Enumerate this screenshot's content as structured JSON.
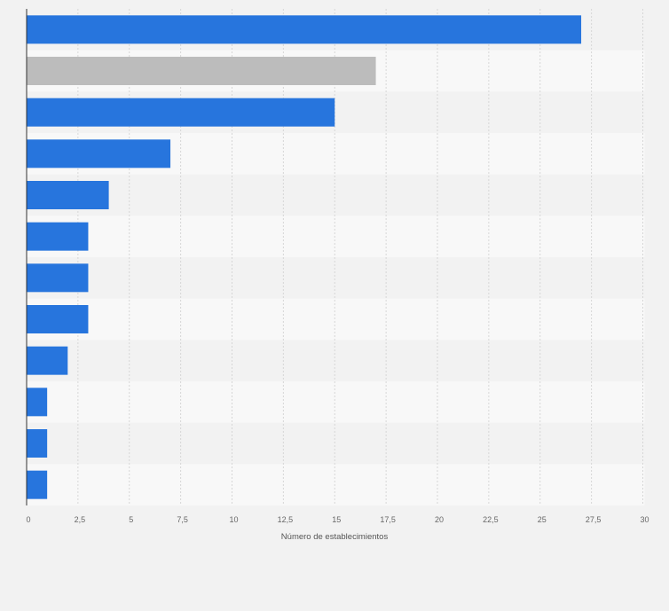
{
  "chart_data": {
    "type": "bar",
    "orientation": "horizontal",
    "categories": [
      "",
      "",
      "",
      "",
      "",
      "",
      "",
      "",
      "",
      "",
      "",
      ""
    ],
    "values": [
      27,
      17,
      15,
      7,
      4,
      3,
      3,
      3,
      2,
      1,
      1,
      1
    ],
    "highlight_index": 1,
    "xlabel": "Número de establecimientos",
    "ylabel": "",
    "xlim": [
      0,
      30
    ],
    "xticks": [
      "0",
      "2,5",
      "5",
      "7,5",
      "10",
      "12,5",
      "15",
      "17,5",
      "20",
      "22,5",
      "25",
      "27,5",
      "30"
    ],
    "grid": true,
    "colors": {
      "bar": "#2775dd",
      "highlight": "#bcbcbc",
      "row_a": "#f2f2f2",
      "row_b": "#f8f8f8",
      "grid": "#d6d6d6"
    }
  }
}
